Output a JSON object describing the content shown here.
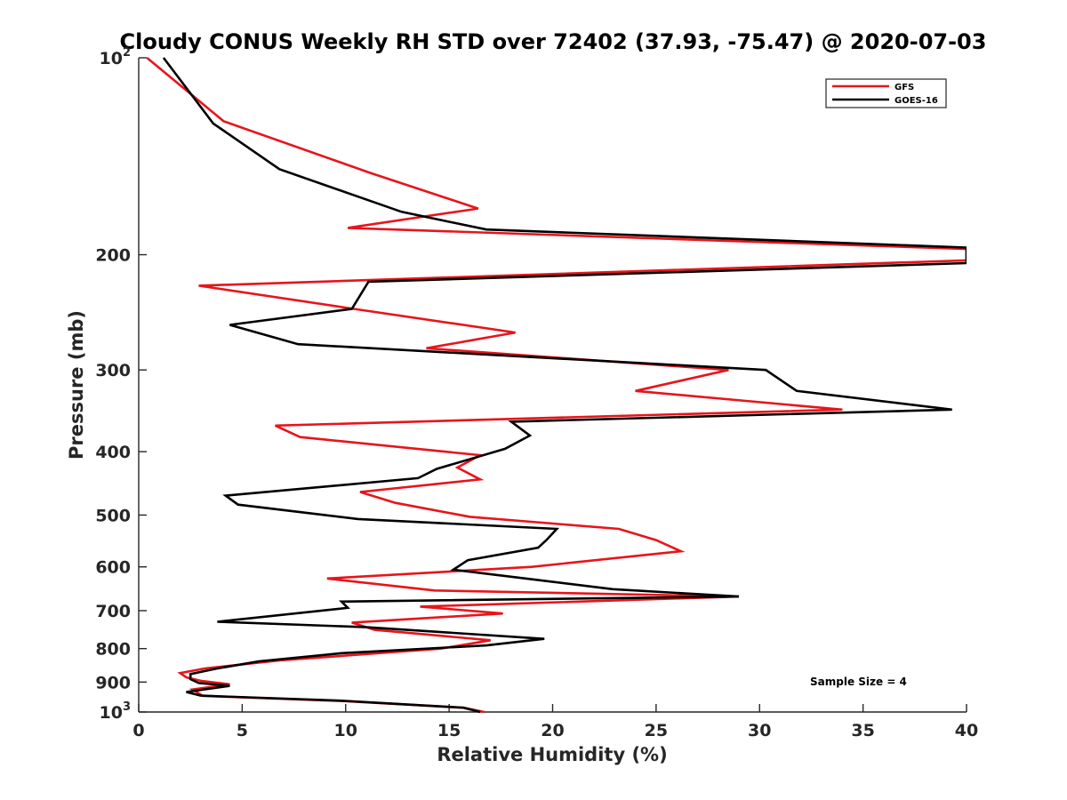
{
  "chart_data": {
    "type": "line",
    "title": "Cloudy CONUS Weekly RH STD over 72402 (37.93, -75.47) @ 2020-07-03",
    "xlabel": "Relative Humidity (%)",
    "ylabel": "Pressure (mb)",
    "xlim": [
      0,
      40
    ],
    "ylim": [
      100,
      1000
    ],
    "y_scale": "log",
    "y_reversed": true,
    "grid": false,
    "legend_position": "top-right",
    "annotation": "Sample Size = 4",
    "x_ticks": [
      "0",
      "5",
      "10",
      "15",
      "20",
      "25",
      "30",
      "35",
      "40"
    ],
    "y_ticks": [
      {
        "value": 100,
        "base": "10",
        "exp": "2"
      },
      {
        "value": 200,
        "label": "200"
      },
      {
        "value": 300,
        "label": "300"
      },
      {
        "value": 400,
        "label": "400"
      },
      {
        "value": 500,
        "label": "500"
      },
      {
        "value": 600,
        "label": "600"
      },
      {
        "value": 700,
        "label": "700"
      },
      {
        "value": 800,
        "label": "800"
      },
      {
        "value": 900,
        "label": "900"
      },
      {
        "value": 1000,
        "base": "10",
        "exp": "3"
      }
    ],
    "series": [
      {
        "name": "GFS",
        "color": "#e8141b",
        "points": [
          [
            0.4,
            100
          ],
          [
            4.1,
            125
          ],
          [
            11.2,
            150
          ],
          [
            16.4,
            170
          ],
          [
            10.1,
            182
          ],
          [
            40.0,
            196
          ],
          [
            40.0,
            200
          ],
          [
            40.0,
            204
          ],
          [
            2.9,
            223
          ],
          [
            10.4,
            242
          ],
          [
            18.2,
            263
          ],
          [
            13.9,
            278
          ],
          [
            28.5,
            300
          ],
          [
            24.0,
            323
          ],
          [
            34.0,
            345
          ],
          [
            6.6,
            365
          ],
          [
            7.8,
            380
          ],
          [
            16.5,
            405
          ],
          [
            15.4,
            423
          ],
          [
            16.5,
            441
          ],
          [
            10.7,
            461
          ],
          [
            12.4,
            479
          ],
          [
            16.0,
            503
          ],
          [
            23.2,
            525
          ],
          [
            25.0,
            546
          ],
          [
            26.2,
            568
          ],
          [
            19.0,
            600
          ],
          [
            9.1,
            625
          ],
          [
            14.3,
            652
          ],
          [
            29.0,
            666
          ],
          [
            13.6,
            690
          ],
          [
            17.6,
            707
          ],
          [
            10.3,
            730
          ],
          [
            11.4,
            749
          ],
          [
            17.0,
            777
          ],
          [
            14.6,
            800
          ],
          [
            6.8,
            834
          ],
          [
            3.2,
            858
          ],
          [
            2.0,
            872
          ],
          [
            2.3,
            885
          ],
          [
            3.0,
            896
          ],
          [
            4.4,
            907
          ],
          [
            2.6,
            924
          ],
          [
            3.1,
            945
          ],
          [
            9.8,
            962
          ],
          [
            15.7,
            985
          ],
          [
            16.7,
            1000
          ]
        ]
      },
      {
        "name": "GOES-16",
        "color": "#000000",
        "points": [
          [
            1.2,
            100
          ],
          [
            3.6,
            126
          ],
          [
            6.8,
            148
          ],
          [
            12.7,
            172
          ],
          [
            16.8,
            183
          ],
          [
            40.0,
            195
          ],
          [
            40.0,
            200
          ],
          [
            40.0,
            206
          ],
          [
            11.1,
            220
          ],
          [
            10.3,
            242
          ],
          [
            4.4,
            256
          ],
          [
            7.7,
            274
          ],
          [
            30.3,
            300
          ],
          [
            31.8,
            323
          ],
          [
            39.3,
            345
          ],
          [
            18.0,
            360
          ],
          [
            18.9,
            378
          ],
          [
            17.7,
            396
          ],
          [
            14.4,
            425
          ],
          [
            13.5,
            439
          ],
          [
            4.2,
            467
          ],
          [
            4.8,
            482
          ],
          [
            10.6,
            507
          ],
          [
            20.2,
            525
          ],
          [
            19.7,
            546
          ],
          [
            19.3,
            561
          ],
          [
            15.9,
            586
          ],
          [
            15.2,
            606
          ],
          [
            18.3,
            623
          ],
          [
            22.9,
            649
          ],
          [
            29.0,
            666
          ],
          [
            9.8,
            678
          ],
          [
            10.1,
            693
          ],
          [
            3.8,
            728
          ],
          [
            11.0,
            742
          ],
          [
            19.6,
            773
          ],
          [
            16.8,
            791
          ],
          [
            9.8,
            813
          ],
          [
            5.8,
            837
          ],
          [
            3.8,
            858
          ],
          [
            2.5,
            875
          ],
          [
            2.5,
            891
          ],
          [
            2.9,
            903
          ],
          [
            4.4,
            912
          ],
          [
            2.3,
            932
          ],
          [
            3.0,
            944
          ],
          [
            9.8,
            961
          ],
          [
            15.7,
            985
          ],
          [
            16.5,
            1000
          ]
        ]
      }
    ]
  }
}
